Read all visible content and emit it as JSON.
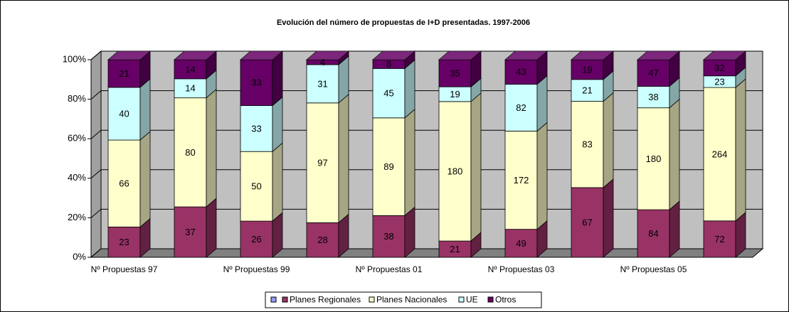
{
  "chart_data": {
    "type": "bar",
    "stack": "percent",
    "title": "Evolución del número de propuestas de I+D presentadas. 1997-2006",
    "categories": [
      "Nº Propuestas 97",
      null,
      "Nº Propuestas 99",
      null,
      "Nº Propuestas 01",
      null,
      "Nº Propuestas 03",
      null,
      "Nº Propuestas 05",
      null
    ],
    "series": [
      {
        "name": "Planes Regionales",
        "color": "#993366",
        "values": [
          23,
          37,
          26,
          28,
          38,
          21,
          49,
          67,
          84,
          72
        ]
      },
      {
        "name": "Planes Nacionales",
        "color": "#ffffcc",
        "values": [
          66,
          80,
          50,
          97,
          89,
          180,
          172,
          83,
          180,
          264
        ]
      },
      {
        "name": "UE",
        "color": "#ccffff",
        "values": [
          40,
          14,
          33,
          31,
          45,
          19,
          82,
          21,
          38,
          23
        ]
      },
      {
        "name": "Otros",
        "color": "#660066",
        "values": [
          21,
          14,
          33,
          4,
          8,
          35,
          43,
          19,
          47,
          32
        ]
      }
    ],
    "ylim": [
      0,
      100
    ],
    "yticks": [
      {
        "value": 0,
        "label": "0%"
      },
      {
        "value": 20,
        "label": "20%"
      },
      {
        "value": 40,
        "label": "40%"
      },
      {
        "value": 60,
        "label": "60%"
      },
      {
        "value": 80,
        "label": "80%"
      },
      {
        "value": 100,
        "label": "100%"
      }
    ],
    "grid": true,
    "legend": "bottom"
  }
}
